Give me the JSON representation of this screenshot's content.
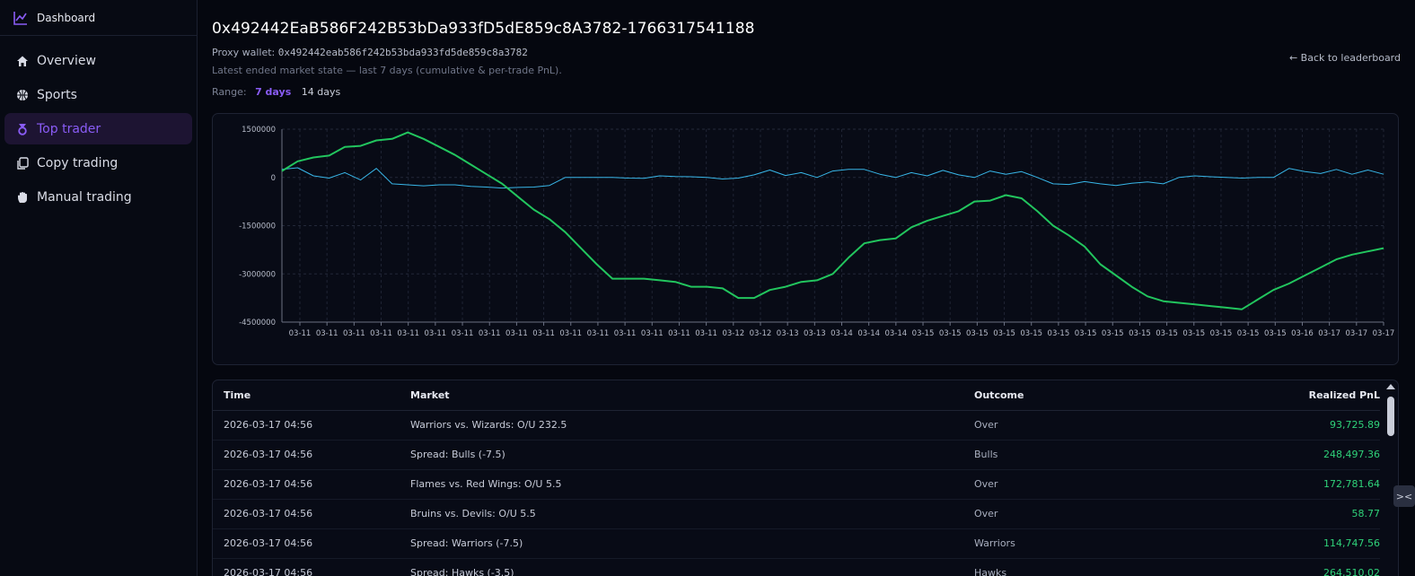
{
  "app": {
    "brand": "Dashboard"
  },
  "sidebar": {
    "items": [
      {
        "label": "Overview",
        "icon": "home-icon"
      },
      {
        "label": "Sports",
        "icon": "basketball-icon"
      },
      {
        "label": "Top trader",
        "icon": "medal-icon",
        "active": true
      },
      {
        "label": "Copy trading",
        "icon": "copy-icon"
      },
      {
        "label": "Manual trading",
        "icon": "hand-icon"
      }
    ]
  },
  "header": {
    "title": "0x492442EaB586F242B53bDa933fD5dE859c8A3782-1766317541188",
    "proxy_label": "Proxy wallet:",
    "proxy_address": "0x492442eab586f242b53bda933fd5de859c8a3782",
    "subtitle": "Latest ended market state — last 7 days (cumulative & per-trade PnL).",
    "range_label": "Range:",
    "range_options": [
      "7 days",
      "14 days"
    ],
    "range_selected": "7 days",
    "back_link": "← Back to leaderboard"
  },
  "colors": {
    "accent": "#8a5cf6",
    "cumulative_line": "#22c55e",
    "per_trade_line": "#38b6e8",
    "positive": "#2fd27a"
  },
  "chart_data": {
    "type": "line",
    "ylim": [
      -4500000,
      1500000
    ],
    "y_ticks": [
      "1500000",
      "0",
      "-1500000",
      "-3000000",
      "-4500000"
    ],
    "x_tick_labels": [
      "03-11",
      "03-11",
      "03-11",
      "03-11",
      "03-11",
      "03-11",
      "03-11",
      "03-11",
      "03-11",
      "03-11",
      "03-11",
      "03-11",
      "03-11",
      "03-11",
      "03-11",
      "03-11",
      "03-12",
      "03-12",
      "03-13",
      "03-13",
      "03-14",
      "03-14",
      "03-14",
      "03-15",
      "03-15",
      "03-15",
      "03-15",
      "03-15",
      "03-15",
      "03-15",
      "03-15",
      "03-15",
      "03-15",
      "03-15",
      "03-15",
      "03-15",
      "03-15",
      "03-16",
      "03-17",
      "03-17",
      "03-17"
    ],
    "grid": true,
    "series": [
      {
        "values": [
          200000,
          500000,
          620000,
          680000,
          950000,
          980000,
          1150000,
          1200000,
          1400000,
          1200000,
          950000,
          700000,
          400000,
          100000,
          -200000,
          -600000,
          -1000000,
          -1300000,
          -1700000,
          -2200000,
          -2700000,
          -3150000,
          -3150000,
          -3150000,
          -3200000,
          -3250000,
          -3400000,
          -3400000,
          -3450000,
          -3750000,
          -3750000,
          -3500000,
          -3400000,
          -3250000,
          -3200000,
          -3000000,
          -2500000,
          -2050000,
          -1950000,
          -1900000,
          -1550000,
          -1350000,
          -1200000,
          -1050000,
          -750000,
          -720000,
          -550000,
          -650000,
          -1050000,
          -1500000,
          -1800000,
          -2150000,
          -2700000,
          -3050000,
          -3400000,
          -3700000,
          -3850000,
          -3900000,
          -3950000,
          -4000000,
          -4050000,
          -4100000,
          -3800000,
          -3500000,
          -3300000,
          -3050000,
          -2800000,
          -2550000,
          -2400000,
          -2300000,
          -2200000
        ],
        "color": "#22c55e"
      },
      {
        "values": [
          250000,
          300000,
          50000,
          -20000,
          150000,
          -80000,
          280000,
          -200000,
          -230000,
          -260000,
          -230000,
          -230000,
          -280000,
          -300000,
          -330000,
          -310000,
          -300000,
          -250000,
          0,
          0,
          0,
          0,
          -20000,
          -30000,
          50000,
          30000,
          20000,
          0,
          -50000,
          -20000,
          80000,
          230000,
          60000,
          150000,
          0,
          200000,
          250000,
          250000,
          100000,
          0,
          150000,
          50000,
          220000,
          80000,
          0,
          200000,
          100000,
          180000,
          0,
          -200000,
          -220000,
          -130000,
          -200000,
          -250000,
          -180000,
          -140000,
          -200000,
          0,
          50000,
          20000,
          0,
          -20000,
          0,
          0,
          280000,
          180000,
          120000,
          250000,
          100000,
          230000,
          100000
        ],
        "color": "#38b6e8"
      }
    ]
  },
  "table": {
    "headers": {
      "time": "Time",
      "market": "Market",
      "outcome": "Outcome",
      "pnl": "Realized PnL"
    },
    "rows": [
      {
        "time": "2026-03-17 04:56",
        "market": "Warriors vs. Wizards: O/U 232.5",
        "outcome": "Over",
        "pnl": "93,725.89"
      },
      {
        "time": "2026-03-17 04:56",
        "market": "Spread: Bulls (-7.5)",
        "outcome": "Bulls",
        "pnl": "248,497.36"
      },
      {
        "time": "2026-03-17 04:56",
        "market": "Flames vs. Red Wings: O/U 5.5",
        "outcome": "Over",
        "pnl": "172,781.64"
      },
      {
        "time": "2026-03-17 04:56",
        "market": "Bruins vs. Devils: O/U 5.5",
        "outcome": "Over",
        "pnl": "58.77"
      },
      {
        "time": "2026-03-17 04:56",
        "market": "Spread: Warriors (-7.5)",
        "outcome": "Warriors",
        "pnl": "114,747.56"
      },
      {
        "time": "2026-03-17 04:56",
        "market": "Spread: Hawks (-3.5)",
        "outcome": "Hawks",
        "pnl": "264,510.02"
      }
    ]
  }
}
